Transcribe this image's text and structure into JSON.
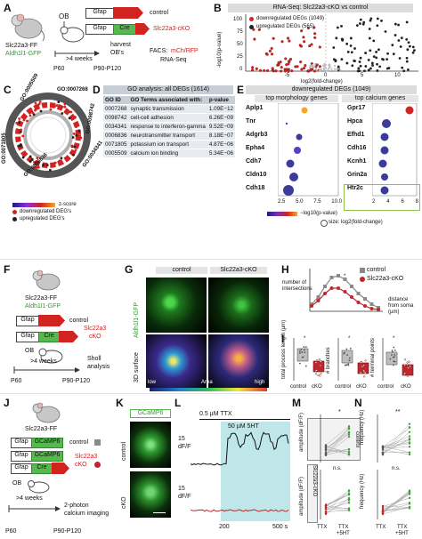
{
  "panel_labels": {
    "a": "A",
    "b": "B",
    "c": "C",
    "d": "D",
    "e": "E",
    "f": "F",
    "g": "G",
    "h": "H",
    "i": "I",
    "j": "J",
    "k": "K",
    "l": "L",
    "m": "M",
    "n": "N"
  },
  "panel_a": {
    "mouse_line1": "Slc22a3-FF",
    "mouse_line2": "Aldh1l1-GFP",
    "ob": "OB",
    "gfap": "Gfap",
    "cre": "Cre",
    "control": "control",
    "cko": "Slc22a3-cKO",
    "weeks": ">4 weeks",
    "p60": "P60",
    "p90": "P90-P120",
    "harvest1": "harvest",
    "harvest2": "OB's",
    "facs_label": "FACS:",
    "facs_markers": "mCh/RFP",
    "rnaseq": "RNA-Seq"
  },
  "panel_b": {
    "title": "RNA-Seq: Slc22a3-cKO vs control",
    "legend_down": "downregulated DEGs (1049)",
    "legend_up": "upregulated DEGs (565)",
    "ylabel": "-log10(p-value)",
    "xlabel": "log2(fold-change)",
    "yticks": [
      "100",
      "75",
      "50",
      "25",
      "0"
    ],
    "xticks": [
      "-5",
      "0",
      "5",
      "10"
    ]
  },
  "panel_c": {
    "go_labels": [
      "GO:0005509",
      "GO:0007268",
      "GO:0098742",
      "GO:0034341",
      "GO:0006836",
      "GO:0071805"
    ],
    "legend_z": "z-score",
    "legend_down": "downregulated DEG's",
    "legend_up": "upregulated DEG's"
  },
  "panel_d": {
    "title": "GO analysis: all DEGs (1614)",
    "headers": [
      "GO ID",
      "GO Terms associated with:",
      "p-value"
    ],
    "rows": [
      [
        "0007268",
        "synaptic transmission",
        "1.09E−12"
      ],
      [
        "0098742",
        "cell-cell adhesion",
        "6.26E−09"
      ],
      [
        "0034341",
        "response to interferon-gamma",
        "9.52E−09"
      ],
      [
        "0006836",
        "neurotransmitter transport",
        "8.18E−07"
      ],
      [
        "0071805",
        "potassium ion transport",
        "4.87E−06"
      ],
      [
        "0005509",
        "calcium ion binding",
        "5.34E−06"
      ]
    ]
  },
  "panel_e": {
    "title": "downregulated DEGs (1049)",
    "left_title": "top morphology genes",
    "right_title": "top calcium genes",
    "left_genes": [
      "Aplp1",
      "Tnr",
      "Adgrb3",
      "Epha4",
      "Cdh7",
      "Cldn10",
      "Cdh18"
    ],
    "right_genes": [
      "Gpr17",
      "Hpca",
      "Efhd1",
      "Cdh16",
      "Kcnh1",
      "Grin2a",
      "Htr2c"
    ],
    "left_xticks": [
      "2.5",
      "5.0",
      "7.5",
      "10.0"
    ],
    "right_xticks": [
      "2",
      "4",
      "6",
      "8"
    ],
    "legend_color": "−log10(p-value)",
    "legend_size": "size: log2(fold-change)"
  },
  "panel_f": {
    "mouse_line1": "Slc22a3-FF",
    "mouse_line2": "Aldh1l1-GFP",
    "gfap": "Gfap",
    "cre": "Cre",
    "control": "control",
    "cko1": "Slc22a3",
    "cko2": "cKO",
    "ob": "OB",
    "weeks": ">4 weeks",
    "p60": "P60",
    "p90": "P90-P120",
    "sholl1": "Sholl",
    "sholl2": "analysis"
  },
  "panel_g": {
    "col_control": "control",
    "col_cko": "Slc22a3-cKO",
    "row1": "Aldh1l1-GFP",
    "row2": "3D surface",
    "scale_low": "low",
    "scale_mid": "Area",
    "scale_high": "high"
  },
  "panel_h": {
    "ylabel1": "number of",
    "ylabel2": "intersections",
    "xlabel1": "distance",
    "xlabel2": "from soma",
    "xlabel3": "(µm)",
    "legend_control": "control",
    "legend_cko": "Slc22a3-cKO",
    "star": "*",
    "yticks": [
      "40",
      "30",
      "20",
      "10",
      "0"
    ],
    "xticks": [
      "0",
      "5",
      "10",
      "15",
      "20",
      "25",
      "30",
      "35",
      "40",
      "45"
    ]
  },
  "panel_i": {
    "plots": [
      {
        "ylabel": "total process length (µm)",
        "yticks": [
          "2500",
          "1500",
          "500"
        ],
        "star": "*"
      },
      {
        "ylabel": "# branches",
        "yticks": [
          "30",
          "20",
          "10",
          "0"
        ],
        "star": "*"
      },
      {
        "ylabel": "# terminal points",
        "yticks": [
          "500",
          "300",
          "100"
        ],
        "star": "*"
      }
    ],
    "x_control": "control",
    "x_cko": "cKO"
  },
  "panel_j": {
    "mouse_line": "Slc22a3-FF",
    "gfap": "Gfap",
    "gcamp": "GCaMP6",
    "cre": "Cre",
    "control": "control",
    "cko1": "Slc22a3",
    "cko2": "cKO",
    "ob": "OB",
    "weeks": ">4 weeks",
    "p60": "P60",
    "p90": "P90-P120",
    "imaging1": "2-photon",
    "imaging2": "calcium imaging"
  },
  "panel_k": {
    "title": "GCaMP6",
    "row1": "control",
    "row2": "cKO"
  },
  "panel_l": {
    "ttx": "0.5 µM TTX",
    "ht": "50 µM 5HT",
    "scale1a": "15",
    "scale1b": "dF/F",
    "scale2a": "15",
    "scale2b": "dF/F",
    "xtick1": "200",
    "xtick2": "500 s"
  },
  "panel_m": {
    "ylabel_top": "amplitude (dF/F)",
    "ylabel_bottom": "amplitude (dF/F)",
    "row_top": "control",
    "row_bottom": "Slc22a3-cKO",
    "sig_top": "*",
    "sig_bottom": "n.s.",
    "yticks_top": [
      "150",
      "100",
      "50",
      "0"
    ],
    "yticks_bottom": [
      "150",
      "100",
      "50",
      "0"
    ],
    "x1": "TTX",
    "x2a": "TTX",
    "x2b": "+5HT"
  },
  "panel_n": {
    "ylabel_top": "frequency (Hz)",
    "ylabel_bottom": "frequency (Hz)",
    "sig_top": "**",
    "sig_bottom": "n.s.",
    "yticks_top": [
      "0.5",
      "0.4",
      "0.2",
      "0"
    ],
    "yticks_bottom": [
      "0.5",
      "0.4",
      "0.2",
      "0"
    ],
    "x1": "TTX",
    "x2a": "TTX",
    "x2b": "+5HT"
  },
  "colors": {
    "red": "#d1231f",
    "green": "#3ea335",
    "cko_red": "#c0262b",
    "control_grey": "#8a8a8a",
    "teal": "#bfe7ea"
  }
}
